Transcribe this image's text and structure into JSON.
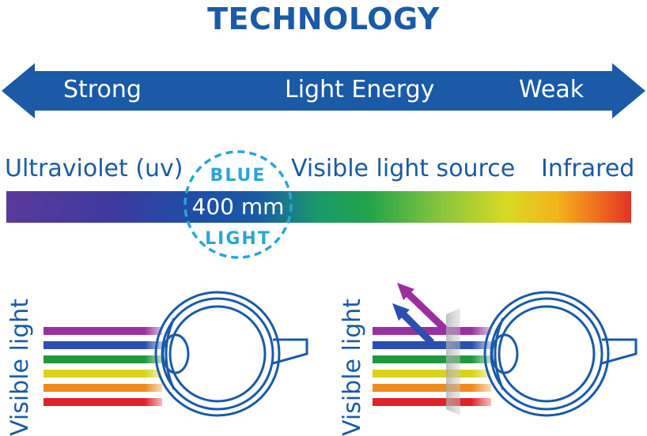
{
  "title": "TECHNOLOGY",
  "energy_arrow": {
    "left_label": "Strong",
    "center_label": "Light Energy",
    "right_label": "Weak"
  },
  "spectrum": {
    "uv_label": "Ultraviolet (uv)",
    "visible_label": "Visible light source",
    "ir_label": "Infrared",
    "blue_top": "BLUE",
    "wavelength": "400 mm",
    "blue_bottom": "LIGHT"
  },
  "eyes": {
    "left_label": "Visible light",
    "right_label": "Visible light"
  },
  "colors": {
    "brand_blue": "#1a5aa6",
    "accent_cyan": "#2aa5d8",
    "rays": [
      "#9b2fa0",
      "#2a4fb0",
      "#1f9a3a",
      "#d9d31a",
      "#f08a1c",
      "#e0222a"
    ]
  }
}
